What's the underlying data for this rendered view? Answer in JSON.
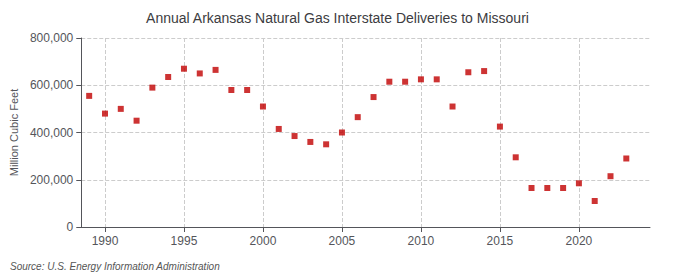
{
  "chart_data": {
    "type": "scatter",
    "title": "Annual Arkansas Natural Gas Interstate Deliveries to Missouri",
    "ylabel": "Million Cubic Feet",
    "annotations": [
      "Source: U.S. Energy Information Administration"
    ],
    "color": "#c00000",
    "marker": "square",
    "grid": true,
    "xlim": [
      1988.5,
      2024.5
    ],
    "ylim": [
      0,
      800000
    ],
    "xticks": [
      1990,
      1995,
      2000,
      2005,
      2010,
      2015,
      2020
    ],
    "yticks": [
      0,
      {
        "value": 200000,
        "label": "200,000"
      },
      {
        "value": 400000,
        "label": "400,000"
      },
      {
        "value": 600000,
        "label": "600,000"
      },
      {
        "value": 800000,
        "label": "800,000"
      }
    ],
    "x": [
      1989,
      1990,
      1991,
      1992,
      1993,
      1994,
      1995,
      1996,
      1997,
      1998,
      1999,
      2000,
      2001,
      2002,
      2003,
      2004,
      2005,
      2006,
      2007,
      2008,
      2009,
      2010,
      2011,
      2012,
      2013,
      2014,
      2015,
      2016,
      2017,
      2018,
      2019,
      2020,
      2021,
      2022,
      2023
    ],
    "values": [
      555000,
      480000,
      500000,
      450000,
      590000,
      635000,
      670000,
      650000,
      665000,
      580000,
      580000,
      510000,
      415000,
      385000,
      360000,
      350000,
      400000,
      465000,
      550000,
      615000,
      615000,
      625000,
      625000,
      510000,
      655000,
      660000,
      425000,
      295000,
      165000,
      165000,
      165000,
      185000,
      110000,
      215000,
      290000
    ]
  }
}
